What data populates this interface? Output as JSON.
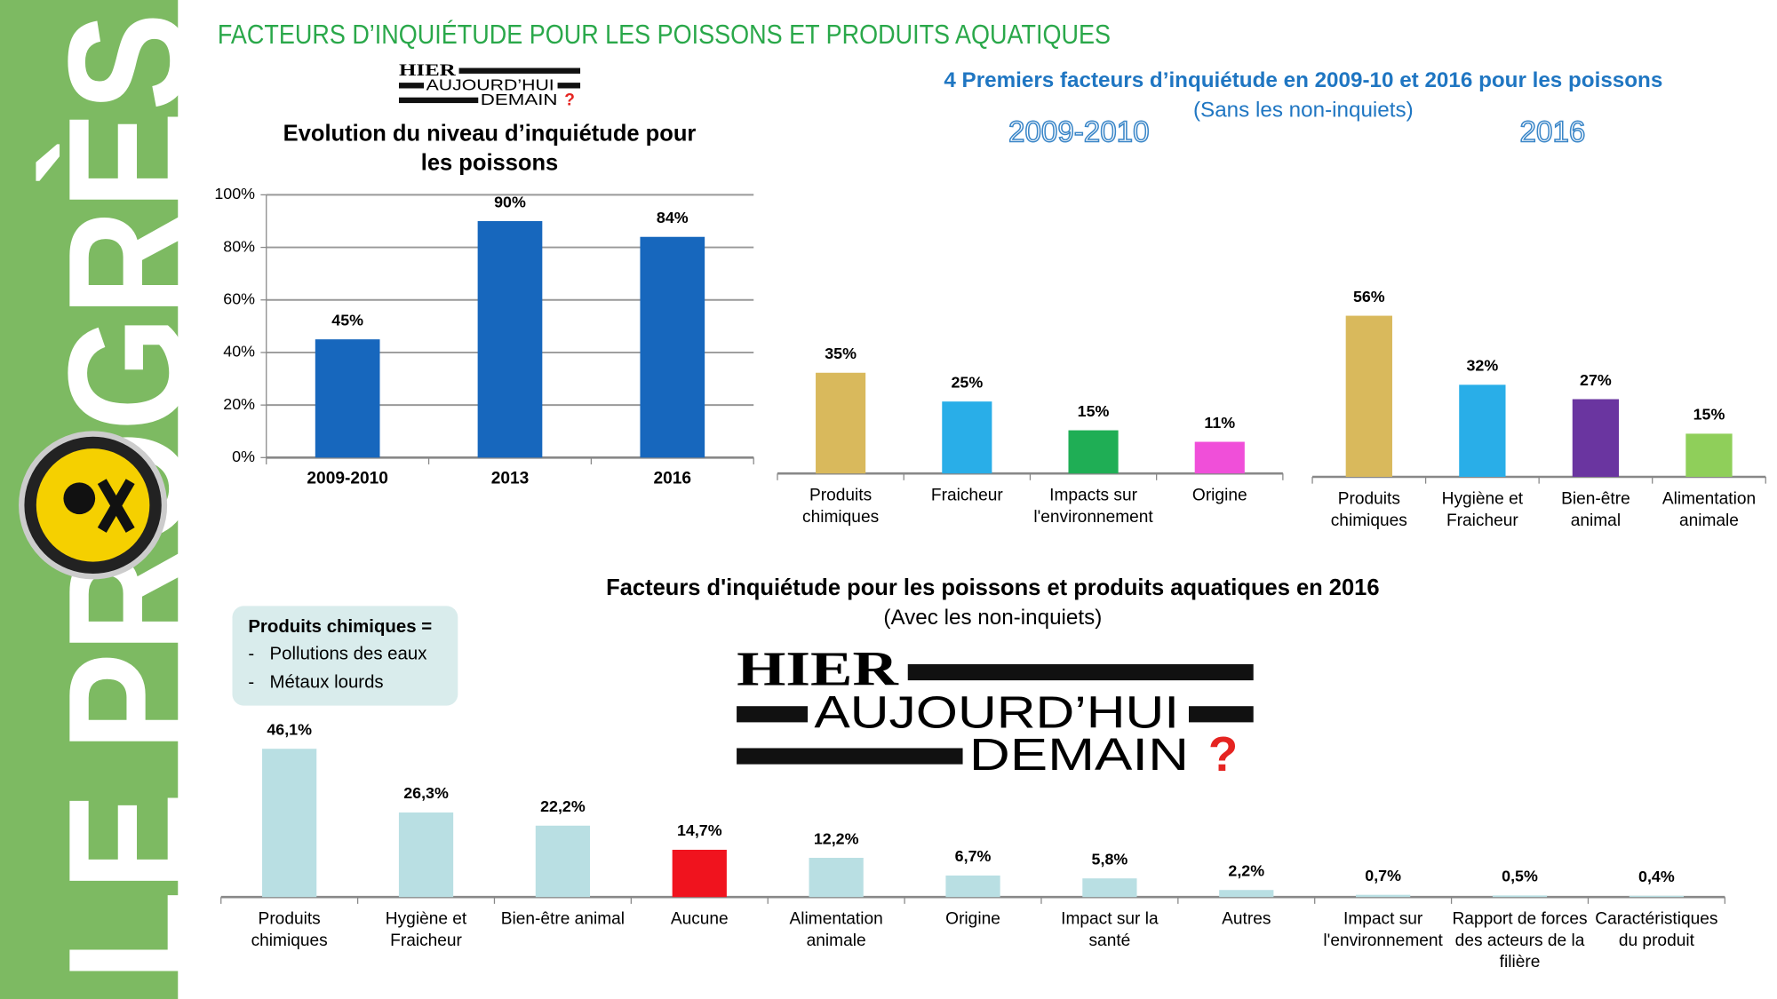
{
  "header": {
    "title": "FACTEURS D’INQUIÉTUDE POUR LES POISSONS ET PRODUITS AQUATIQUES"
  },
  "sidebar": {
    "text": "LE PROGRÈS"
  },
  "logo": {
    "lines": [
      "HIER",
      "AUJOURD’HUI",
      "DEMAIN"
    ],
    "mark": "?"
  },
  "comparison": {
    "title": "4 Premiers facteurs d’inquiétude en 2009-10 et 2016 pour les poissons",
    "subtitle": "(Sans les non-inquiets)"
  },
  "note": {
    "title": "Produits chimiques =",
    "bullet": "-",
    "items": [
      "Pollutions des eaux",
      "Métaux lourds"
    ]
  },
  "chart_data": [
    {
      "type": "bar",
      "title": [
        "Evolution du niveau d’inquiétude pour",
        "les poissons"
      ],
      "categories": [
        [
          "2009-2010"
        ],
        [
          "2013"
        ],
        [
          "2016"
        ]
      ],
      "values": [
        45,
        90,
        84
      ],
      "value_labels": [
        "45%",
        "90%",
        "84%"
      ],
      "colors": [
        "#1767bd",
        "#1767bd",
        "#1767bd"
      ],
      "ylim": [
        0,
        100
      ],
      "yticks": [
        {
          "value": 0,
          "label": "0%"
        },
        {
          "value": 20,
          "label": "20%"
        },
        {
          "value": 40,
          "label": "40%"
        },
        {
          "value": 60,
          "label": "60%"
        },
        {
          "value": 80,
          "label": "80%"
        },
        {
          "value": 100,
          "label": "100%"
        }
      ],
      "grid": true
    },
    {
      "type": "bar",
      "title": [
        "2009-2010"
      ],
      "categories": [
        [
          "Produits",
          "chimiques"
        ],
        [
          "Fraicheur"
        ],
        [
          "Impacts sur",
          "l'environnement"
        ],
        [
          "Origine"
        ]
      ],
      "values": [
        35,
        25,
        15,
        11
      ],
      "value_labels": [
        "35%",
        "25%",
        "15%",
        "11%"
      ],
      "colors": [
        "#d9b95c",
        "#29aee8",
        "#1fae55",
        "#f04fd9"
      ]
    },
    {
      "type": "bar",
      "title": [
        "2016"
      ],
      "categories": [
        [
          "Produits",
          "chimiques"
        ],
        [
          "Hygiène et",
          "Fraicheur"
        ],
        [
          "Bien-être",
          "animal"
        ],
        [
          "Alimentation",
          "animale"
        ]
      ],
      "values": [
        56,
        32,
        27,
        15
      ],
      "value_labels": [
        "56%",
        "32%",
        "27%",
        "15%"
      ],
      "colors": [
        "#d9b95c",
        "#29aee8",
        "#6a35a0",
        "#8fcf5a"
      ]
    },
    {
      "type": "bar",
      "title": [
        "Facteurs d'inquiétude pour les poissons et produits aquatiques en 2016"
      ],
      "subtitle": "(Avec les non-inquiets)",
      "categories": [
        [
          "Produits",
          "chimiques"
        ],
        [
          "Hygiène et",
          "Fraicheur"
        ],
        [
          "Bien-être animal"
        ],
        [
          "Aucune"
        ],
        [
          "Alimentation",
          "animale"
        ],
        [
          "Origine"
        ],
        [
          "Impact sur la",
          "santé"
        ],
        [
          "Autres"
        ],
        [
          "Impact sur",
          "l'environnement"
        ],
        [
          "Rapport de forces",
          "des acteurs de la",
          "filière"
        ],
        [
          "Caractéristiques",
          "du produit"
        ]
      ],
      "values": [
        46.1,
        26.3,
        22.2,
        14.7,
        12.2,
        6.7,
        5.8,
        2.2,
        0.7,
        0.5,
        0.4
      ],
      "value_labels": [
        "46,1%",
        "26,3%",
        "22,2%",
        "14,7%",
        "12,2%",
        "6,7%",
        "5,8%",
        "2,2%",
        "0,7%",
        "0,5%",
        "0,4%"
      ],
      "colors": [
        "#b9dfe3",
        "#b9dfe3",
        "#b9dfe3",
        "#f0131e",
        "#b9dfe3",
        "#b9dfe3",
        "#b9dfe3",
        "#b9dfe3",
        "#b9dfe3",
        "#b9dfe3",
        "#b9dfe3"
      ]
    }
  ]
}
